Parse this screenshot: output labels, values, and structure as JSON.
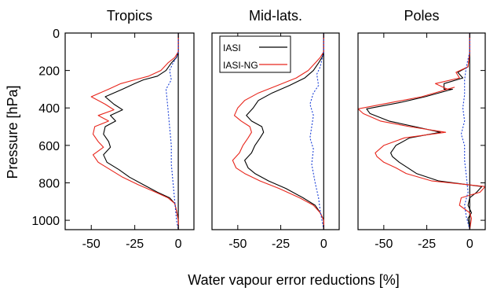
{
  "chart_data": {
    "type": "line",
    "xlabel": "Water vapour error reductions [%]",
    "ylabel": "Pressure [hPa]",
    "xlim": [
      -65,
      9
    ],
    "ylim": [
      1050,
      0
    ],
    "x_ticks": [
      -50,
      -25,
      0
    ],
    "y_ticks": [
      0,
      200,
      400,
      600,
      800,
      1000
    ],
    "legend": {
      "placement": "top-left of middle panel",
      "entries": [
        {
          "label": "IASI",
          "color": "#000000"
        },
        {
          "label": "IASI-NG",
          "color": "#e8261c"
        }
      ]
    },
    "dotted_series_color": "#1a3fd6",
    "panels": [
      {
        "title": "Tropics",
        "series": [
          {
            "name": "IASI",
            "color": "#000000",
            "points": [
              [
                0,
                0
              ],
              [
                0,
                100
              ],
              [
                -1,
                130
              ],
              [
                -4,
                160
              ],
              [
                -7,
                200
              ],
              [
                -12,
                230
              ],
              [
                -20,
                250
              ],
              [
                -25,
                270
              ],
              [
                -32,
                300
              ],
              [
                -42,
                340
              ],
              [
                -37,
                380
              ],
              [
                -32,
                410
              ],
              [
                -39,
                440
              ],
              [
                -36,
                470
              ],
              [
                -42,
                500
              ],
              [
                -43,
                540
              ],
              [
                -40,
                580
              ],
              [
                -39,
                610
              ],
              [
                -43,
                650
              ],
              [
                -41,
                690
              ],
              [
                -34,
                730
              ],
              [
                -28,
                770
              ],
              [
                -20,
                810
              ],
              [
                -12,
                850
              ],
              [
                -5,
                880
              ],
              [
                -2,
                910
              ],
              [
                -1,
                950
              ],
              [
                0,
                1000
              ],
              [
                0,
                1050
              ]
            ]
          },
          {
            "name": "IASI-NG",
            "color": "#e8261c",
            "points": [
              [
                0,
                0
              ],
              [
                0,
                100
              ],
              [
                -2,
                130
              ],
              [
                -6,
                160
              ],
              [
                -10,
                200
              ],
              [
                -17,
                230
              ],
              [
                -25,
                250
              ],
              [
                -33,
                270
              ],
              [
                -40,
                300
              ],
              [
                -50,
                340
              ],
              [
                -42,
                380
              ],
              [
                -37,
                410
              ],
              [
                -46,
                440
              ],
              [
                -40,
                470
              ],
              [
                -48,
                500
              ],
              [
                -49,
                540
              ],
              [
                -46,
                580
              ],
              [
                -43,
                610
              ],
              [
                -49,
                650
              ],
              [
                -46,
                690
              ],
              [
                -39,
                730
              ],
              [
                -32,
                770
              ],
              [
                -23,
                810
              ],
              [
                -13,
                850
              ],
              [
                -6,
                880
              ],
              [
                -2,
                910
              ],
              [
                -1,
                950
              ],
              [
                0,
                1000
              ],
              [
                0,
                1050
              ]
            ]
          },
          {
            "name": "",
            "color": "#1a3fd6",
            "dash": "dotted",
            "points": [
              [
                0,
                0
              ],
              [
                0,
                100
              ],
              [
                -1,
                130
              ],
              [
                -3,
                160
              ],
              [
                -5,
                200
              ],
              [
                -4,
                250
              ],
              [
                -7,
                300
              ],
              [
                -6,
                400
              ],
              [
                -5,
                500
              ],
              [
                -4,
                600
              ],
              [
                -4,
                700
              ],
              [
                -3,
                800
              ],
              [
                -2,
                900
              ],
              [
                -1,
                1000
              ],
              [
                0,
                1050
              ]
            ]
          }
        ]
      },
      {
        "title": "Mid-lats.",
        "series": [
          {
            "name": "IASI",
            "color": "#000000",
            "points": [
              [
                0,
                0
              ],
              [
                0,
                100
              ],
              [
                -1,
                130
              ],
              [
                -3,
                160
              ],
              [
                -6,
                200
              ],
              [
                -11,
                240
              ],
              [
                -20,
                280
              ],
              [
                -30,
                320
              ],
              [
                -38,
                360
              ],
              [
                -41,
                400
              ],
              [
                -45,
                440
              ],
              [
                -42,
                470
              ],
              [
                -36,
                500
              ],
              [
                -35,
                530
              ],
              [
                -37,
                560
              ],
              [
                -40,
                600
              ],
              [
                -42,
                640
              ],
              [
                -46,
                680
              ],
              [
                -44,
                720
              ],
              [
                -40,
                750
              ],
              [
                -32,
                790
              ],
              [
                -22,
                830
              ],
              [
                -12,
                880
              ],
              [
                -5,
                920
              ],
              [
                -2,
                960
              ],
              [
                0,
                1000
              ],
              [
                0,
                1050
              ]
            ]
          },
          {
            "name": "IASI-NG",
            "color": "#e8261c",
            "points": [
              [
                0,
                0
              ],
              [
                0,
                100
              ],
              [
                -2,
                130
              ],
              [
                -5,
                160
              ],
              [
                -9,
                200
              ],
              [
                -16,
                240
              ],
              [
                -27,
                280
              ],
              [
                -38,
                320
              ],
              [
                -46,
                360
              ],
              [
                -50,
                400
              ],
              [
                -52,
                440
              ],
              [
                -48,
                470
              ],
              [
                -43,
                500
              ],
              [
                -42,
                530
              ],
              [
                -44,
                560
              ],
              [
                -47,
                600
              ],
              [
                -49,
                640
              ],
              [
                -53,
                680
              ],
              [
                -51,
                720
              ],
              [
                -46,
                750
              ],
              [
                -37,
                790
              ],
              [
                -26,
                830
              ],
              [
                -14,
                880
              ],
              [
                -6,
                920
              ],
              [
                -2,
                960
              ],
              [
                0,
                1000
              ],
              [
                0,
                1050
              ]
            ]
          },
          {
            "name": "",
            "color": "#1a3fd6",
            "dash": "dotted",
            "points": [
              [
                0,
                0
              ],
              [
                0,
                100
              ],
              [
                -1,
                140
              ],
              [
                -2,
                180
              ],
              [
                -4,
                220
              ],
              [
                -3,
                280
              ],
              [
                -6,
                320
              ],
              [
                -8,
                380
              ],
              [
                -6,
                440
              ],
              [
                -7,
                500
              ],
              [
                -8,
                560
              ],
              [
                -6,
                620
              ],
              [
                -7,
                700
              ],
              [
                -5,
                800
              ],
              [
                -3,
                880
              ],
              [
                -2,
                950
              ],
              [
                -1,
                1000
              ],
              [
                0,
                1050
              ]
            ]
          }
        ]
      },
      {
        "title": "Poles",
        "series": [
          {
            "name": "IASI",
            "color": "#000000",
            "points": [
              [
                0,
                0
              ],
              [
                0,
                100
              ],
              [
                -1,
                180
              ],
              [
                -7,
                210
              ],
              [
                -4,
                240
              ],
              [
                -15,
                270
              ],
              [
                -15,
                300
              ],
              [
                -10,
                300
              ],
              [
                -26,
                340
              ],
              [
                -40,
                370
              ],
              [
                -60,
                405
              ],
              [
                -58,
                430
              ],
              [
                -47,
                470
              ],
              [
                -32,
                500
              ],
              [
                -17,
                530
              ],
              [
                -35,
                560
              ],
              [
                -43,
                600
              ],
              [
                -46,
                640
              ],
              [
                -45,
                660
              ],
              [
                -41,
                690
              ],
              [
                -36,
                720
              ],
              [
                -31,
                750
              ],
              [
                -18,
                790
              ],
              [
                7,
                820
              ],
              [
                4,
                850
              ],
              [
                0,
                880
              ],
              [
                -1,
                920
              ],
              [
                1,
                960
              ],
              [
                -1,
                990
              ],
              [
                0,
                1050
              ]
            ]
          },
          {
            "name": "IASI-NG",
            "color": "#e8261c",
            "points": [
              [
                0,
                0
              ],
              [
                0,
                100
              ],
              [
                -1,
                180
              ],
              [
                -8,
                210
              ],
              [
                -6,
                240
              ],
              [
                -20,
                270
              ],
              [
                -13,
                300
              ],
              [
                -9,
                290
              ],
              [
                -28,
                340
              ],
              [
                -45,
                370
              ],
              [
                -65,
                405
              ],
              [
                -62,
                430
              ],
              [
                -52,
                470
              ],
              [
                -35,
                500
              ],
              [
                -14,
                530
              ],
              [
                -38,
                560
              ],
              [
                -50,
                600
              ],
              [
                -55,
                640
              ],
              [
                -54,
                660
              ],
              [
                -50,
                690
              ],
              [
                -43,
                720
              ],
              [
                -37,
                750
              ],
              [
                -22,
                790
              ],
              [
                9,
                820
              ],
              [
                6,
                850
              ],
              [
                -5,
                880
              ],
              [
                -6,
                920
              ],
              [
                0,
                960
              ],
              [
                1,
                990
              ],
              [
                0,
                1050
              ]
            ]
          },
          {
            "name": "",
            "color": "#1a3fd6",
            "dash": "dotted",
            "points": [
              [
                0,
                0
              ],
              [
                0,
                100
              ],
              [
                -2,
                180
              ],
              [
                -3,
                250
              ],
              [
                -3,
                330
              ],
              [
                -4,
                400
              ],
              [
                -3,
                470
              ],
              [
                -5,
                540
              ],
              [
                -3,
                600
              ],
              [
                -3,
                680
              ],
              [
                -2,
                760
              ],
              [
                -1,
                850
              ],
              [
                -3,
                920
              ],
              [
                -2,
                980
              ],
              [
                0,
                1050
              ]
            ]
          }
        ]
      }
    ]
  }
}
